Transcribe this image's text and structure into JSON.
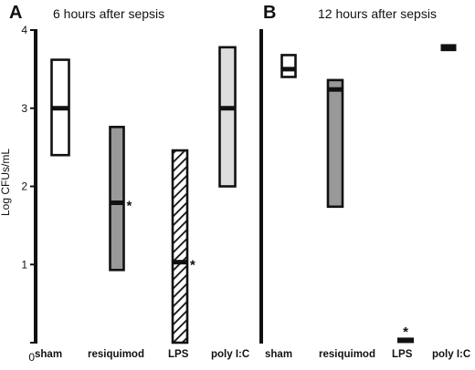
{
  "chart_data": {
    "type": "bar",
    "ylabel": "Log CFUs/mL",
    "ylim": [
      0,
      4
    ],
    "yticks": [
      "0",
      "1",
      "2",
      "3",
      "4"
    ],
    "colors": {
      "sham": "#ffffff",
      "resiquimod": "#999999",
      "LPS": "hatched",
      "poly I:C": "#dddddd",
      "outline": "#111111"
    },
    "panels": [
      {
        "letter": "A",
        "title": "6 hours after sepsis",
        "categories": [
          "sham",
          "resiquimod",
          "LPS",
          "poly I:C"
        ],
        "boxes": [
          {
            "category": "sham",
            "min": 2.4,
            "max": 3.62,
            "median": 3.0,
            "significant": false
          },
          {
            "category": "resiquimod",
            "min": 0.93,
            "max": 2.76,
            "median": 1.79,
            "significant": true
          },
          {
            "category": "LPS",
            "min": 0.0,
            "max": 2.46,
            "median": 1.03,
            "significant": true
          },
          {
            "category": "poly I:C",
            "min": 2.0,
            "max": 3.78,
            "median": 3.0,
            "significant": false
          }
        ]
      },
      {
        "letter": "B",
        "title": "12 hours after sepsis",
        "categories": [
          "sham",
          "resiquimod",
          "LPS",
          "poly I:C"
        ],
        "boxes": [
          {
            "category": "sham",
            "min": 3.4,
            "max": 3.68,
            "median": 3.5,
            "significant": false
          },
          {
            "category": "resiquimod",
            "min": 1.74,
            "max": 3.36,
            "median": 3.24,
            "significant": false
          },
          {
            "category": "LPS",
            "min": 0.0,
            "max": 0.06,
            "median": 0.03,
            "significant": true
          },
          {
            "category": "poly I:C",
            "min": 3.73,
            "max": 3.82,
            "median": 3.78,
            "significant": false
          }
        ]
      }
    ],
    "significance_marker": "*"
  }
}
